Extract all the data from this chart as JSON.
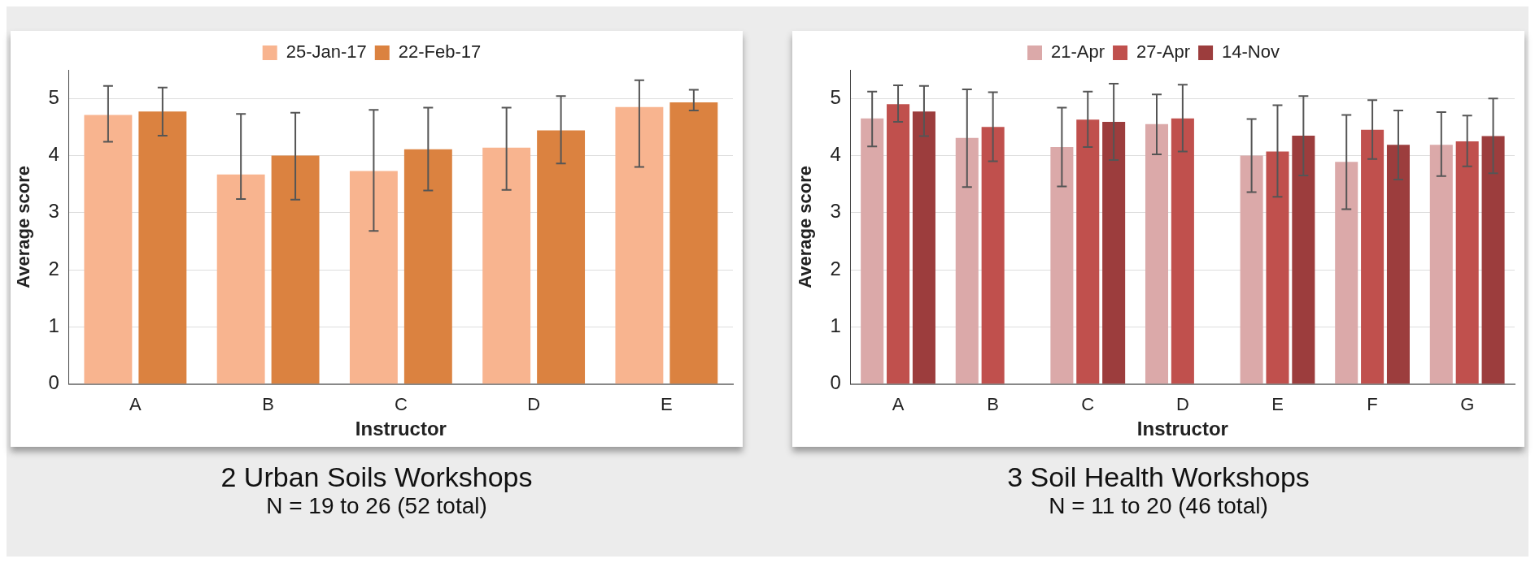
{
  "chart_data": [
    {
      "type": "bar",
      "title": "2 Urban Soils Workshops",
      "subtitle": "N = 19 to 26 (52 total)",
      "xlabel": "Instructor",
      "ylabel": "Average score",
      "categories": [
        "A",
        "B",
        "C",
        "D",
        "E"
      ],
      "ylim": [
        0,
        5.5
      ],
      "yticks": [
        0,
        1,
        2,
        3,
        4,
        5
      ],
      "grid": "y",
      "legend": "top",
      "series": [
        {
          "name": "25-Jan-17",
          "color": "#f8b48f",
          "values": [
            4.71,
            3.67,
            3.73,
            4.14,
            4.85
          ],
          "errors": [
            [
              4.24,
              5.22
            ],
            [
              3.24,
              4.73
            ],
            [
              2.68,
              4.8
            ],
            [
              3.4,
              4.84
            ],
            [
              3.8,
              5.32
            ]
          ]
        },
        {
          "name": "22-Feb-17",
          "color": "#db8240",
          "values": [
            4.77,
            4.0,
            4.11,
            4.44,
            4.93
          ],
          "errors": [
            [
              4.35,
              5.19
            ],
            [
              3.23,
              4.75
            ],
            [
              3.39,
              4.84
            ],
            [
              3.86,
              5.04
            ],
            [
              4.79,
              5.15
            ]
          ]
        }
      ]
    },
    {
      "type": "bar",
      "title": "3 Soil Health Workshops",
      "subtitle": "N = 11 to 20 (46 total)",
      "xlabel": "Instructor",
      "ylabel": "Average score",
      "categories": [
        "A",
        "B",
        "C",
        "D",
        "E",
        "F",
        "G"
      ],
      "ylim": [
        0,
        5.5
      ],
      "yticks": [
        0,
        1,
        2,
        3,
        4,
        5
      ],
      "grid": "y",
      "legend": "top",
      "series": [
        {
          "name": "21-Apr",
          "color": "#dba9a9",
          "values": [
            4.65,
            4.31,
            4.15,
            4.55,
            4.0,
            3.89,
            4.19
          ],
          "errors": [
            [
              4.16,
              5.12
            ],
            [
              3.45,
              5.16
            ],
            [
              3.46,
              4.84
            ],
            [
              4.02,
              5.07
            ],
            [
              3.36,
              4.64
            ],
            [
              3.06,
              4.71
            ],
            [
              3.64,
              4.76
            ]
          ]
        },
        {
          "name": "27-Apr",
          "color": "#c0504d",
          "values": [
            4.9,
            4.5,
            4.63,
            4.65,
            4.07,
            4.45,
            4.25
          ],
          "errors": [
            [
              4.59,
              5.23
            ],
            [
              3.9,
              5.11
            ],
            [
              4.15,
              5.12
            ],
            [
              4.07,
              5.24
            ],
            [
              3.28,
              4.88
            ],
            [
              3.94,
              4.97
            ],
            [
              3.81,
              4.7
            ]
          ]
        },
        {
          "name": "14-Nov",
          "color": "#9c3d3d",
          "values": [
            4.77,
            null,
            4.59,
            null,
            4.35,
            4.19,
            4.34
          ],
          "errors": [
            [
              4.34,
              5.22
            ],
            null,
            [
              3.92,
              5.26
            ],
            null,
            [
              3.65,
              5.04
            ],
            [
              3.58,
              4.79
            ],
            [
              3.69,
              5.0
            ]
          ]
        }
      ]
    }
  ]
}
